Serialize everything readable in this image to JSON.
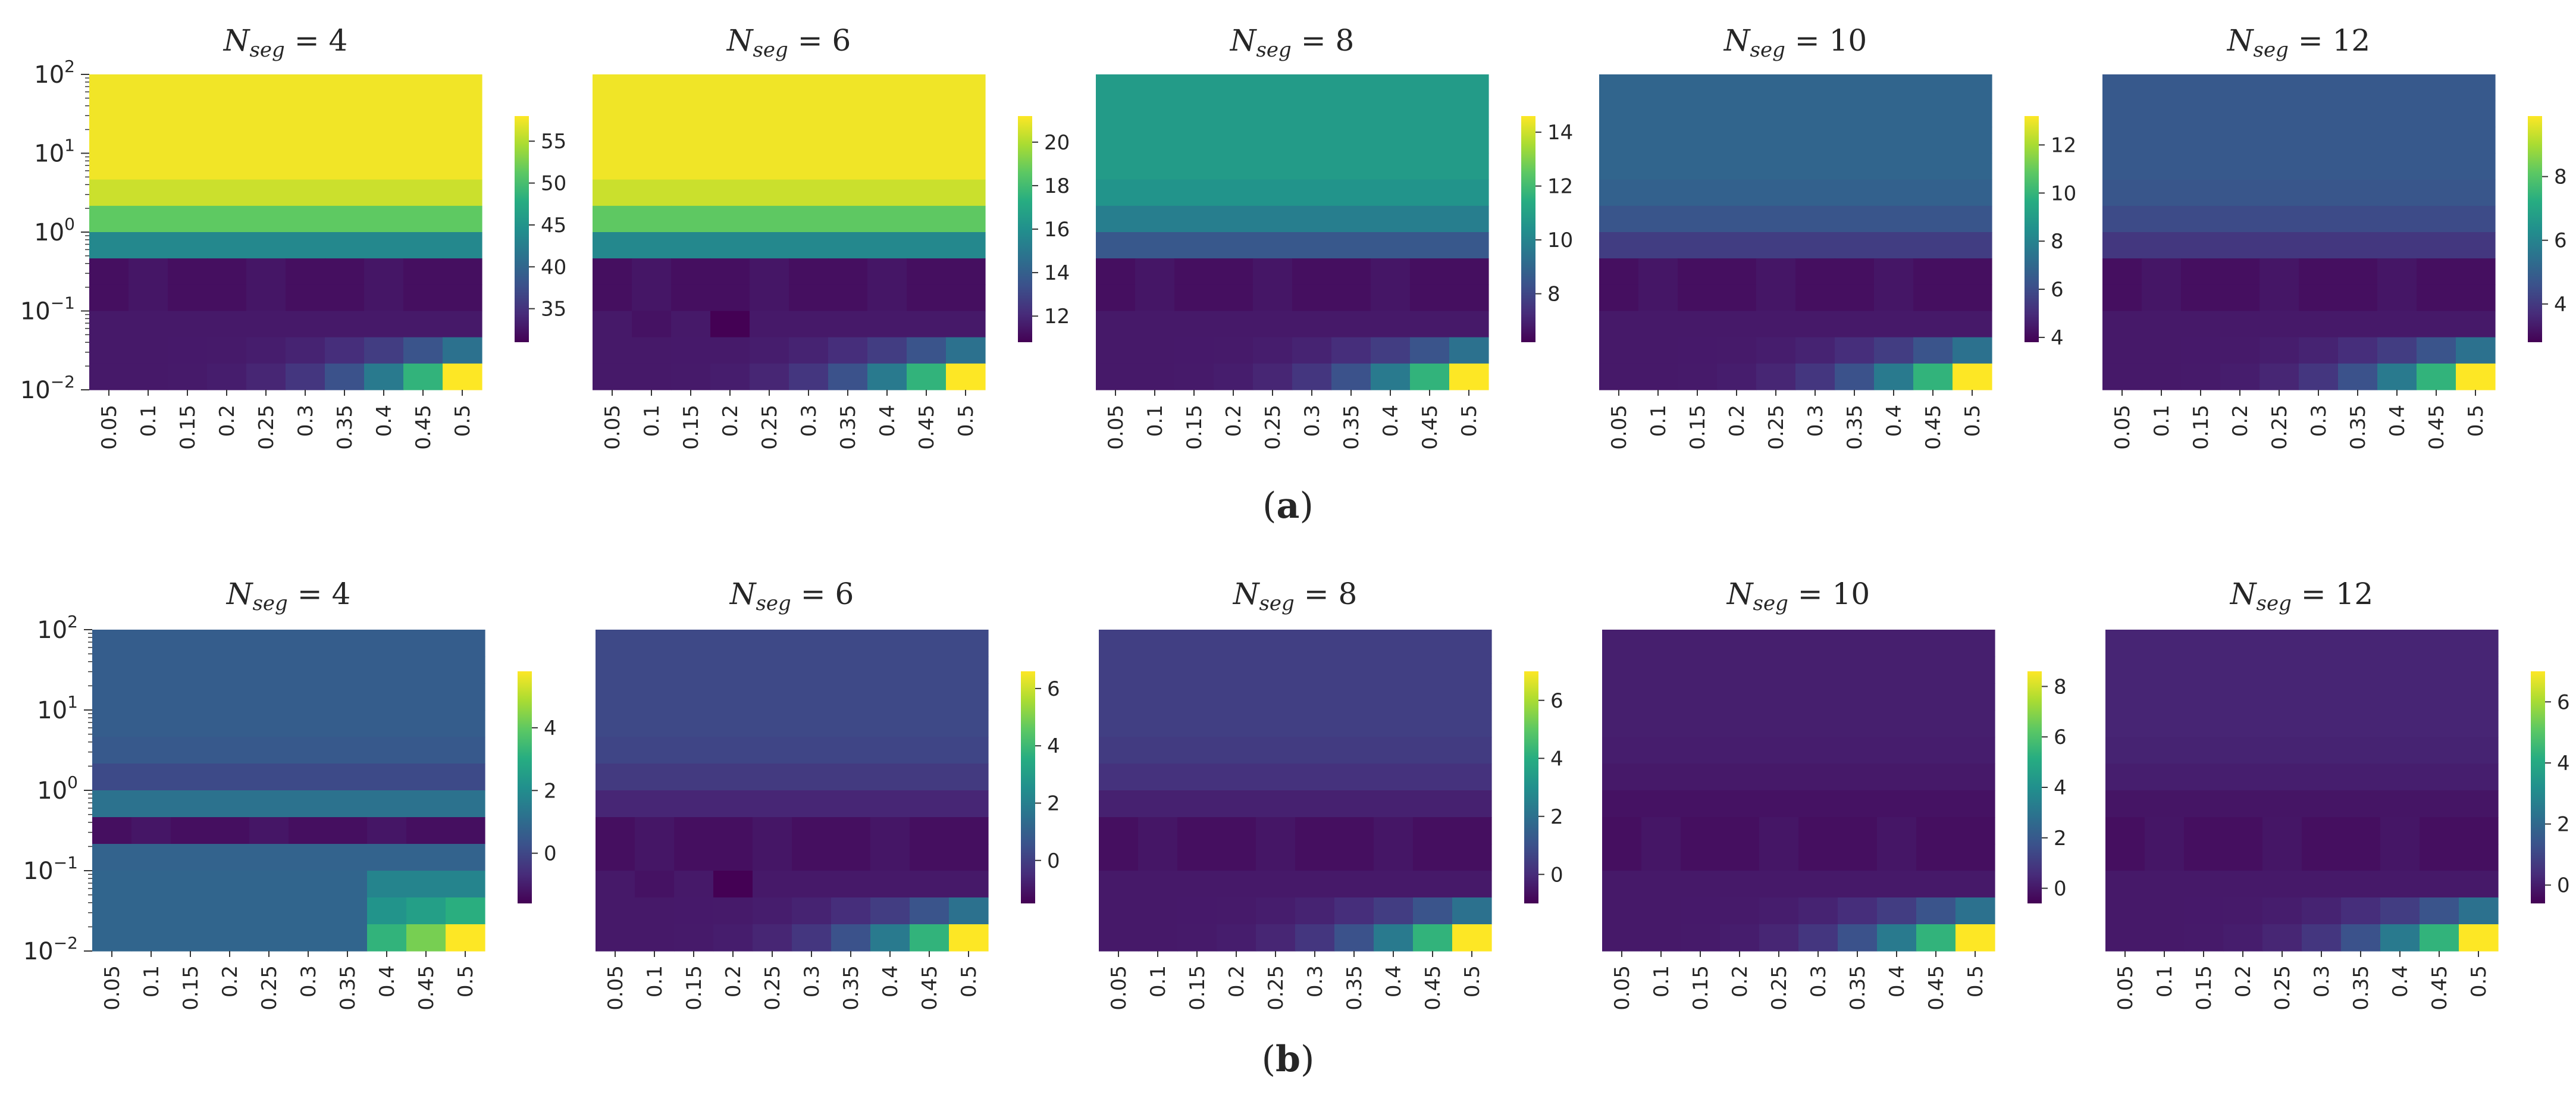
{
  "figure": {
    "panel_labels": [
      {
        "open": "(",
        "letter": "a",
        "close": ")"
      },
      {
        "open": "(",
        "letter": "b",
        "close": ")"
      }
    ],
    "colormap": "viridis",
    "colormap_stops": [
      "#440154",
      "#472c7a",
      "#3b518b",
      "#2c718e",
      "#21908d",
      "#27ad81",
      "#5cc863",
      "#aadc32",
      "#fde725"
    ]
  },
  "chart_data": [
    {
      "type": "heatmap",
      "panel": "a",
      "title": {
        "main": "N",
        "sub": "seg",
        "rest": " = 4"
      },
      "x": [
        "0.05",
        "0.1",
        "0.15",
        "0.2",
        "0.25",
        "0.3",
        "0.35",
        "0.4",
        "0.45",
        "0.5"
      ],
      "yscale": "log",
      "ylim": [
        0.01,
        100
      ],
      "yticks": [
        {
          "base": "10",
          "exp": "2"
        },
        {
          "base": "10",
          "exp": "1"
        },
        {
          "base": "10",
          "exp": "0"
        },
        {
          "base": "10",
          "exp": "−1"
        },
        {
          "base": "10",
          "exp": "−2"
        }
      ],
      "cbar_ticks": [
        "35",
        "40",
        "45",
        "50",
        "55"
      ],
      "vmin": 31,
      "vmax": 58,
      "base_value": 57.5
    },
    {
      "type": "heatmap",
      "panel": "a",
      "title": {
        "main": "N",
        "sub": "seg",
        "rest": " =  6"
      },
      "x": [
        "0.05",
        "0.1",
        "0.15",
        "0.2",
        "0.25",
        "0.3",
        "0.35",
        "0.4",
        "0.45",
        "0.5"
      ],
      "yscale": "log",
      "ylim": [
        0.01,
        100
      ],
      "yticks": [],
      "cbar_ticks": [
        "12",
        "14",
        "16",
        "18",
        "20"
      ],
      "vmin": 10.8,
      "vmax": 21.2,
      "base_value": 21
    },
    {
      "type": "heatmap",
      "panel": "a",
      "title": {
        "main": "N",
        "sub": "seg",
        "rest": " = 8"
      },
      "x": [
        "0.05",
        "0.1",
        "0.15",
        "0.2",
        "0.25",
        "0.3",
        "0.35",
        "0.4",
        "0.45",
        "0.5"
      ],
      "yscale": "log",
      "ylim": [
        0.01,
        100
      ],
      "yticks": [],
      "cbar_ticks": [
        "8",
        "10",
        "12",
        "14"
      ],
      "vmin": 6.2,
      "vmax": 14.6,
      "base_value": 10.8
    },
    {
      "type": "heatmap",
      "panel": "a",
      "title": {
        "main": "N",
        "sub": "seg",
        "rest": " = 10"
      },
      "x": [
        "0.05",
        "0.1",
        "0.15",
        "0.2",
        "0.25",
        "0.3",
        "0.35",
        "0.4",
        "0.45",
        "0.5"
      ],
      "yscale": "log",
      "ylim": [
        0.01,
        100
      ],
      "yticks": [],
      "cbar_ticks": [
        "4",
        "6",
        "8",
        "10",
        "12"
      ],
      "vmin": 3.8,
      "vmax": 13.2,
      "base_value": 6.9
    },
    {
      "type": "heatmap",
      "panel": "a",
      "title": {
        "main": "N",
        "sub": "seg",
        "rest": " = 12"
      },
      "x": [
        "0.05",
        "0.1",
        "0.15",
        "0.2",
        "0.25",
        "0.3",
        "0.35",
        "0.4",
        "0.45",
        "0.5"
      ],
      "yscale": "log",
      "ylim": [
        0.01,
        100
      ],
      "yticks": [],
      "cbar_ticks": [
        "4",
        "6",
        "8"
      ],
      "vmin": 2.8,
      "vmax": 9.9,
      "base_value": 4.8
    },
    {
      "type": "heatmap",
      "panel": "b",
      "title": {
        "main": "N",
        "sub": "seg",
        "rest": " = 4"
      },
      "x": [
        "0.05",
        "0.1",
        "0.15",
        "0.2",
        "0.25",
        "0.3",
        "0.35",
        "0.4",
        "0.45",
        "0.5"
      ],
      "yscale": "log",
      "ylim": [
        0.01,
        100
      ],
      "yticks": [
        {
          "base": "10",
          "exp": "2"
        },
        {
          "base": "10",
          "exp": "1"
        },
        {
          "base": "10",
          "exp": "0"
        },
        {
          "base": "10",
          "exp": "−1"
        },
        {
          "base": "10",
          "exp": "−2"
        }
      ],
      "cbar_ticks": [
        "0",
        "2",
        "4"
      ],
      "vmin": -1.6,
      "vmax": 5.8,
      "base_value": 0.6
    },
    {
      "type": "heatmap",
      "panel": "b",
      "title": {
        "main": "N",
        "sub": "seg",
        "rest": " =  6"
      },
      "x": [
        "0.05",
        "0.1",
        "0.15",
        "0.2",
        "0.25",
        "0.3",
        "0.35",
        "0.4",
        "0.45",
        "0.5"
      ],
      "yscale": "log",
      "ylim": [
        0.01,
        100
      ],
      "yticks": [],
      "cbar_ticks": [
        "0",
        "2",
        "4",
        "6"
      ],
      "vmin": -1.5,
      "vmax": 6.6,
      "base_value": 0.3
    },
    {
      "type": "heatmap",
      "panel": "b",
      "title": {
        "main": "N",
        "sub": "seg",
        "rest": " = 8"
      },
      "x": [
        "0.05",
        "0.1",
        "0.15",
        "0.2",
        "0.25",
        "0.3",
        "0.35",
        "0.4",
        "0.45",
        "0.5"
      ],
      "yscale": "log",
      "ylim": [
        0.01,
        100
      ],
      "yticks": [],
      "cbar_ticks": [
        "0",
        "2",
        "4",
        "6"
      ],
      "vmin": -1.0,
      "vmax": 7.0,
      "base_value": 0.5
    },
    {
      "type": "heatmap",
      "panel": "b",
      "title": {
        "main": "N",
        "sub": "seg",
        "rest": " = 10"
      },
      "x": [
        "0.05",
        "0.1",
        "0.15",
        "0.2",
        "0.25",
        "0.3",
        "0.35",
        "0.4",
        "0.45",
        "0.5"
      ],
      "yscale": "log",
      "ylim": [
        0.01,
        100
      ],
      "yticks": [],
      "cbar_ticks": [
        "0",
        "2",
        "4",
        "6",
        "8"
      ],
      "vmin": -0.6,
      "vmax": 8.6,
      "base_value": 0.2
    },
    {
      "type": "heatmap",
      "panel": "b",
      "title": {
        "main": "N",
        "sub": "seg",
        "rest": " = 12"
      },
      "x": [
        "0.05",
        "0.1",
        "0.15",
        "0.2",
        "0.25",
        "0.3",
        "0.35",
        "0.4",
        "0.45",
        "0.5"
      ],
      "yscale": "log",
      "ylim": [
        0.01,
        100
      ],
      "yticks": [],
      "cbar_ticks": [
        "0",
        "2",
        "4",
        "6"
      ],
      "vmin": -0.6,
      "vmax": 7.0,
      "base_value": 0.2
    }
  ]
}
